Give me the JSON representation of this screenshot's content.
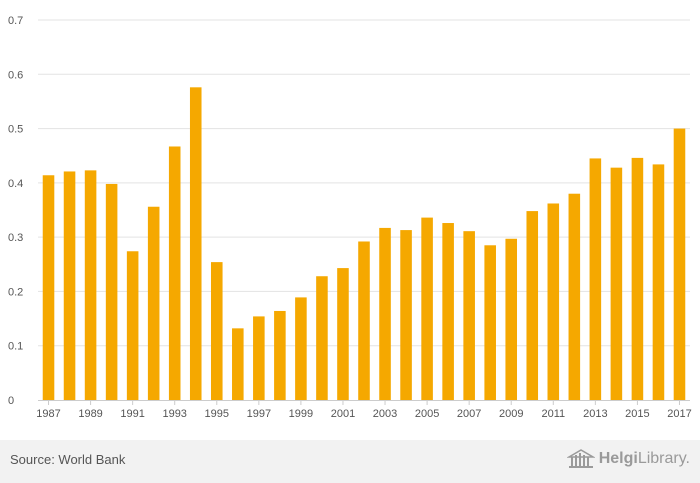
{
  "chart_data": {
    "type": "bar",
    "categories": [
      "1987",
      "1988",
      "1989",
      "1990",
      "1991",
      "1992",
      "1993",
      "1994",
      "1995",
      "1996",
      "1997",
      "1998",
      "1999",
      "2000",
      "2001",
      "2002",
      "2003",
      "2004",
      "2005",
      "2006",
      "2007",
      "2008",
      "2009",
      "2010",
      "2011",
      "2012",
      "2013",
      "2014",
      "2015",
      "2016",
      "2017"
    ],
    "values": [
      0.414,
      0.421,
      0.423,
      0.398,
      0.274,
      0.356,
      0.467,
      0.576,
      0.254,
      0.132,
      0.154,
      0.164,
      0.189,
      0.228,
      0.243,
      0.292,
      0.317,
      0.313,
      0.336,
      0.326,
      0.311,
      0.285,
      0.297,
      0.348,
      0.362,
      0.38,
      0.445,
      0.428,
      0.446,
      0.434,
      0.5
    ],
    "x_tick_labels": [
      "1987",
      "1989",
      "1991",
      "1993",
      "1995",
      "1997",
      "1999",
      "2001",
      "2003",
      "2005",
      "2007",
      "2009",
      "2011",
      "2013",
      "2015",
      "2017"
    ],
    "y_ticks": [
      "0",
      "0.1",
      "0.2",
      "0.3",
      "0.4",
      "0.5",
      "0.6",
      "0.7"
    ],
    "ylim": [
      0,
      0.7
    ],
    "title": "",
    "xlabel": "",
    "ylabel": "",
    "bar_color": "#f5a800",
    "grid_color": "#e3e3e3",
    "grid": true
  },
  "footer": {
    "source": "Source: World Bank",
    "brand_bold": "Helgi",
    "brand_light": "Library."
  }
}
